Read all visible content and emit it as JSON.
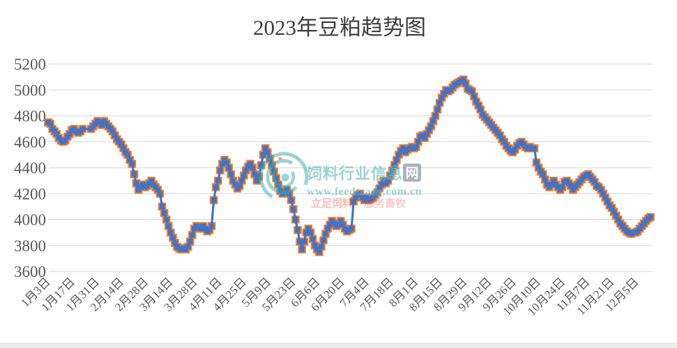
{
  "watermark": {
    "site_name_main": "饲料行业信息",
    "site_name_badge": "网",
    "url": "www.feedtrade.com.cn",
    "slogan_left": "立足饲料",
    "slogan_right": "服务畜牧",
    "teal_color": "#35ada5",
    "red_color": "#e0403a"
  },
  "chart_data": {
    "type": "line",
    "title": "2023年豆粕趋势图",
    "ylim": [
      3600,
      5200
    ],
    "y_ticks": [
      5200,
      5000,
      4800,
      4600,
      4400,
      4200,
      4000,
      3800,
      3600
    ],
    "grid": "horizontal",
    "legend": "none",
    "x_tick_labels": [
      "1月3日",
      "1月17日",
      "1月31日",
      "2月14日",
      "2月28日",
      "3月14日",
      "3月28日",
      "4月11日",
      "4月25日",
      "5月9日",
      "5月23日",
      "6月6日",
      "6月20日",
      "7月4日",
      "7月18日",
      "8月1日",
      "8月15日",
      "8月29日",
      "9月12日",
      "9月26日",
      "10月10日",
      "10月24日",
      "11月7日",
      "11月21日",
      "12月5日"
    ],
    "line_color": "#4472c4",
    "marker_outline_color": "#ed7d31",
    "axis_label_color": "#595959",
    "gridline_color": "#d6d6d6",
    "marker_skip": [
      17,
      18,
      19
    ],
    "values": [
      4750,
      4740,
      4700,
      4680,
      4660,
      4630,
      4610,
      4600,
      4610,
      4640,
      4660,
      4690,
      4700,
      4680,
      4670,
      4680,
      4700,
      4700,
      4700,
      4700,
      4700,
      4720,
      4740,
      4760,
      4750,
      4730,
      4760,
      4740,
      4720,
      4700,
      4680,
      4650,
      4620,
      4600,
      4580,
      4550,
      4520,
      4500,
      4460,
      4430,
      4350,
      4280,
      4230,
      4250,
      4270,
      4250,
      4260,
      4280,
      4300,
      4270,
      4250,
      4230,
      4200,
      4100,
      4050,
      4000,
      3950,
      3900,
      3860,
      3820,
      3790,
      3775,
      3770,
      3780,
      3770,
      3790,
      3830,
      3880,
      3930,
      3950,
      3940,
      3930,
      3950,
      3930,
      3910,
      3920,
      3950,
      4150,
      4250,
      4300,
      4380,
      4430,
      4460,
      4440,
      4400,
      4350,
      4300,
      4270,
      4240,
      4260,
      4300,
      4340,
      4380,
      4410,
      4430,
      4400,
      4350,
      4300,
      4330,
      4420,
      4500,
      4550,
      4520,
      4470,
      4420,
      4370,
      4320,
      4270,
      4220,
      4200,
      4210,
      4230,
      4200,
      4150,
      4080,
      4000,
      3920,
      3830,
      3770,
      3830,
      3900,
      3930,
      3900,
      3850,
      3800,
      3770,
      3750,
      3790,
      3840,
      3890,
      3930,
      3960,
      3990,
      3970,
      3950,
      3960,
      3990,
      3960,
      3930,
      3910,
      3920,
      3930,
      4140,
      4170,
      4190,
      4200,
      4170,
      4150,
      4170,
      4150,
      4160,
      4170,
      4190,
      4210,
      4240,
      4270,
      4300,
      4280,
      4300,
      4340,
      4380,
      4420,
      4460,
      4500,
      4530,
      4550,
      4520,
      4540,
      4550,
      4560,
      4550,
      4560,
      4600,
      4640,
      4650,
      4630,
      4660,
      4690,
      4720,
      4760,
      4800,
      4850,
      4900,
      4940,
      4970,
      5000,
      4990,
      5000,
      5020,
      5040,
      5050,
      5060,
      5070,
      5080,
      5050,
      5010,
      5000,
      4990,
      4950,
      4910,
      4880,
      4850,
      4810,
      4790,
      4770,
      4750,
      4730,
      4710,
      4690,
      4670,
      4650,
      4620,
      4600,
      4570,
      4550,
      4530,
      4520,
      4540,
      4570,
      4590,
      4600,
      4580,
      4560,
      4550,
      4560,
      4550,
      4550,
      4440,
      4400,
      4370,
      4350,
      4310,
      4270,
      4250,
      4270,
      4300,
      4270,
      4250,
      4230,
      4250,
      4290,
      4300,
      4280,
      4260,
      4230,
      4250,
      4270,
      4290,
      4310,
      4330,
      4340,
      4350,
      4330,
      4310,
      4290,
      4260,
      4250,
      4230,
      4200,
      4170,
      4140,
      4110,
      4090,
      4060,
      4030,
      4000,
      3970,
      3950,
      3930,
      3910,
      3900,
      3890,
      3900,
      3900,
      3910,
      3930,
      3950,
      3970,
      3990,
      4010,
      4020
    ]
  }
}
